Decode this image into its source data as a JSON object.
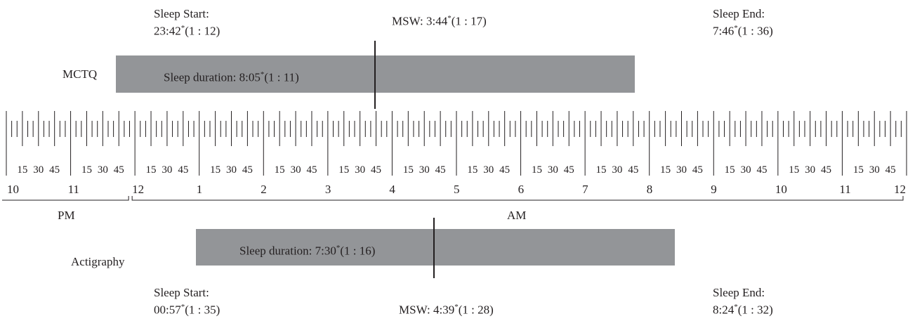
{
  "timeline": {
    "hour_labels": [
      "10",
      "11",
      "12",
      "1",
      "2",
      "3",
      "4",
      "5",
      "6",
      "7",
      "8",
      "9",
      "10",
      "11",
      "12"
    ],
    "minute_labels": [
      "15",
      "30",
      "45"
    ],
    "period_pm": "PM",
    "period_am": "AM",
    "start_hour": 22,
    "end_hour": 36,
    "ticks_per_hour": 12
  },
  "mctq": {
    "row_label": "MCTQ",
    "sleep_start_title": "Sleep Start:",
    "sleep_start_value": "23:42",
    "sleep_start_stat": "(1 : 12)",
    "msw_title": "MSW:",
    "msw_value": "3:44",
    "msw_stat": "(1 : 17)",
    "sleep_end_title": "Sleep End:",
    "sleep_end_value": "7:46",
    "sleep_end_stat": "(1 : 36)",
    "duration_title": "Sleep duration:",
    "duration_value": "8:05",
    "duration_stat": "(1 : 11)",
    "start_hours": 23.7,
    "end_hours": 31.77,
    "msw_hours": 27.73
  },
  "actigraphy": {
    "row_label": "Actigraphy",
    "sleep_start_title": "Sleep Start:",
    "sleep_start_value": "00:57",
    "sleep_start_stat": "(1 : 35)",
    "msw_title": "MSW:",
    "msw_value": "4:39",
    "msw_stat": "(1 : 28)",
    "sleep_end_title": "Sleep End:",
    "sleep_end_value": "8:24",
    "sleep_end_stat": "(1 : 32)",
    "duration_title": "Sleep duration:",
    "duration_value": "7:30",
    "duration_stat": "(1 : 16)",
    "start_hours": 24.95,
    "end_hours": 32.4,
    "msw_hours": 28.65
  },
  "asterisk": "*",
  "colors": {
    "bar": "#939598",
    "ink": "#231f20"
  }
}
